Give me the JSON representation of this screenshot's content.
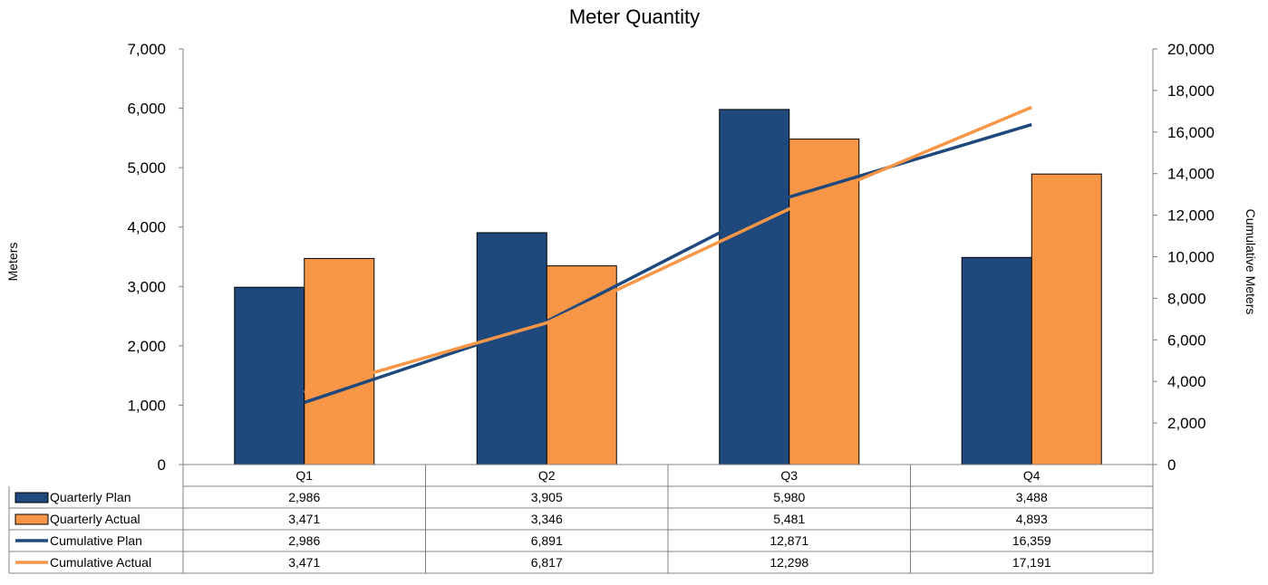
{
  "chart_data": {
    "type": "bar",
    "title": "Meter Quantity",
    "categories": [
      "Q1",
      "Q2",
      "Q3",
      "Q4"
    ],
    "ylabel": "Meters",
    "y2label": "Cumulative Meters",
    "ylim": [
      0,
      7000
    ],
    "y2lim": [
      0,
      20000
    ],
    "yticks": [
      "0",
      "1,000",
      "2,000",
      "3,000",
      "4,000",
      "5,000",
      "6,000",
      "7,000"
    ],
    "y2ticks": [
      "0",
      "2,000",
      "4,000",
      "6,000",
      "8,000",
      "10,000",
      "12,000",
      "14,000",
      "16,000",
      "18,000",
      "20,000"
    ],
    "grid": false,
    "legend": "data-table",
    "series": [
      {
        "name": "Quarterly Plan",
        "kind": "bar",
        "axis": "left",
        "color": "#1f497d",
        "values": [
          2986,
          3905,
          5980,
          3488
        ],
        "labels": [
          "2,986",
          "3,905",
          "5,980",
          "3,488"
        ]
      },
      {
        "name": "Quarterly Actual",
        "kind": "bar",
        "axis": "left",
        "color": "#f79646",
        "values": [
          3471,
          3346,
          5481,
          4893
        ],
        "labels": [
          "3,471",
          "3,346",
          "5,481",
          "4,893"
        ]
      },
      {
        "name": "Cumulative Plan",
        "kind": "line",
        "axis": "right",
        "color": "#1f497d",
        "values": [
          2986,
          6891,
          12871,
          16359
        ],
        "labels": [
          "2,986",
          "6,891",
          "12,871",
          "16,359"
        ]
      },
      {
        "name": "Cumulative Actual",
        "kind": "line",
        "axis": "right",
        "color": "#f79646",
        "values": [
          3471,
          6817,
          12298,
          17191
        ],
        "labels": [
          "3,471",
          "6,817",
          "12,298",
          "17,191"
        ]
      }
    ]
  }
}
